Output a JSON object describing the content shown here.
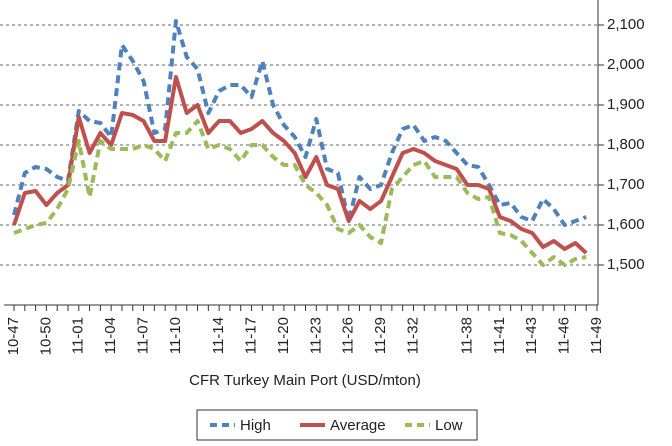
{
  "chart_data": {
    "type": "line",
    "x_label": "CFR Turkey Main Port (USD/mton)",
    "categories": [
      "10-47",
      null,
      null,
      "10-50",
      null,
      null,
      "11-01",
      null,
      null,
      "11-04",
      null,
      null,
      "11-07",
      null,
      null,
      "11-10",
      null,
      null,
      null,
      "11-14",
      null,
      null,
      "11-17",
      null,
      null,
      "11-20",
      null,
      null,
      "11-23",
      null,
      null,
      "11-26",
      null,
      null,
      "11-29",
      null,
      null,
      "11-32",
      null,
      null,
      null,
      null,
      "11-38",
      null,
      null,
      "11-41",
      null,
      null,
      "11-43",
      null,
      null,
      "11-46",
      null,
      null,
      "11-49"
    ],
    "series": [
      {
        "name": "High",
        "color": "#4f81bd",
        "dashed": true,
        "values": [
          1625,
          1730,
          1745,
          1740,
          1720,
          1710,
          1885,
          1860,
          1855,
          1820,
          2050,
          2010,
          1960,
          1830,
          1840,
          2110,
          2020,
          1990,
          1880,
          1935,
          1950,
          1950,
          1920,
          2010,
          1900,
          1850,
          1820,
          1770,
          1865,
          1740,
          1730,
          1610,
          1720,
          1690,
          1700,
          1780,
          1840,
          1850,
          1810,
          1820,
          1810,
          1780,
          1750,
          1745,
          1700,
          1650,
          1655,
          1620,
          1610,
          1665,
          1640,
          1600,
          1610,
          1620,
          null
        ]
      },
      {
        "name": "Average",
        "color": "#c0504d",
        "dashed": false,
        "values": [
          1600,
          1680,
          1685,
          1650,
          1680,
          1700,
          1870,
          1780,
          1830,
          1800,
          1880,
          1875,
          1860,
          1810,
          1810,
          1970,
          1880,
          1900,
          1830,
          1860,
          1860,
          1830,
          1840,
          1860,
          1830,
          1810,
          1780,
          1720,
          1770,
          1700,
          1690,
          1610,
          1660,
          1640,
          1660,
          1720,
          1780,
          1790,
          1780,
          1760,
          1750,
          1740,
          1700,
          1700,
          1690,
          1620,
          1610,
          1590,
          1580,
          1545,
          1560,
          1540,
          1555,
          1530,
          null
        ]
      },
      {
        "name": "Low",
        "color": "#9bbb59",
        "dashed": true,
        "values": [
          1580,
          1590,
          1600,
          1605,
          1640,
          1690,
          1810,
          1670,
          1810,
          1790,
          1790,
          1790,
          1800,
          1790,
          1760,
          1830,
          1830,
          1860,
          1790,
          1800,
          1790,
          1760,
          1800,
          1800,
          1770,
          1750,
          1750,
          1700,
          1680,
          1650,
          1590,
          1580,
          1600,
          1570,
          1555,
          1690,
          1720,
          1750,
          1760,
          1720,
          1720,
          1720,
          1680,
          1665,
          1670,
          1580,
          1575,
          1560,
          1530,
          1500,
          1520,
          1500,
          1515,
          1520,
          null
        ]
      }
    ],
    "ylim": [
      1400,
      2160
    ],
    "yticks": [
      {
        "value": 1500,
        "label": "1,500"
      },
      {
        "value": 1600,
        "label": "1,600"
      },
      {
        "value": 1700,
        "label": "1,700"
      },
      {
        "value": 1800,
        "label": "1,800"
      },
      {
        "value": 1900,
        "label": "1,900"
      },
      {
        "value": 2000,
        "label": "2,000"
      },
      {
        "value": 2100,
        "label": "2,100"
      }
    ],
    "grid": true
  }
}
